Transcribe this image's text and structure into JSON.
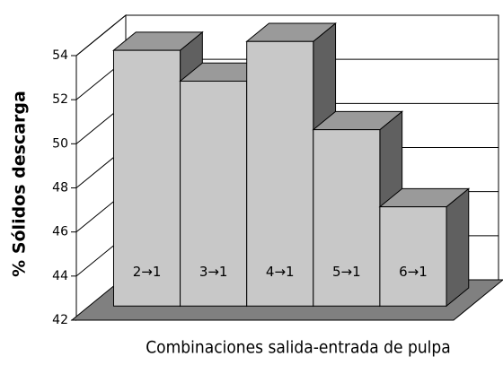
{
  "chart_data": {
    "type": "bar3d",
    "x_label": "Combinaciones salida-entrada de pulpa",
    "y_label": "% Sólidos descarga",
    "categories": [
      "2→1",
      "3→1",
      "4→1",
      "5→1",
      "6→1"
    ],
    "values": [
      53.6,
      52.2,
      54.0,
      50.0,
      46.5
    ],
    "color": "#c8c8c8",
    "ylim": [
      42,
      54
    ],
    "yticks": [
      42,
      44,
      46,
      48,
      50,
      52,
      54
    ],
    "grid": true
  }
}
